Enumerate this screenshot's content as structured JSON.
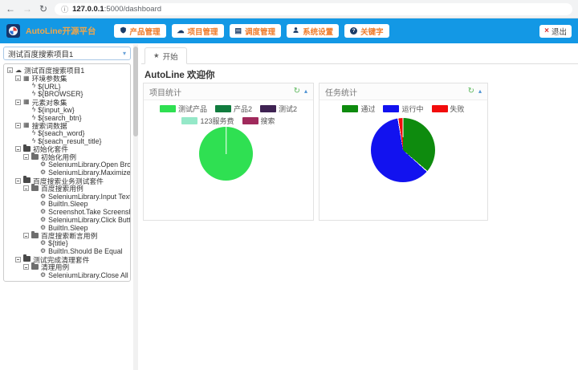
{
  "browser": {
    "url_host": "127.0.0.1",
    "url_rest": ":5000/dashboard"
  },
  "navbar": {
    "brand": "AutoLine开源平台",
    "items": [
      {
        "icon": "shield",
        "label": "产品管理"
      },
      {
        "icon": "cloud",
        "label": "项目管理"
      },
      {
        "icon": "list",
        "label": "调度管理"
      },
      {
        "icon": "user",
        "label": "系统设置"
      },
      {
        "icon": "question",
        "label": "关键字"
      }
    ],
    "logout": "退出"
  },
  "sidebar": {
    "project_select": "测试百度搜索项目1",
    "tree": [
      {
        "level": 0,
        "icon": "project",
        "toggle": true,
        "label": "测试百度搜索项目1"
      },
      {
        "level": 1,
        "icon": "set",
        "toggle": true,
        "label": "环境参数集"
      },
      {
        "level": 2,
        "icon": "var",
        "toggle": false,
        "label": "${URL}"
      },
      {
        "level": 2,
        "icon": "var",
        "toggle": false,
        "label": "${BROWSER}"
      },
      {
        "level": 1,
        "icon": "set",
        "toggle": true,
        "label": "元素对象集"
      },
      {
        "level": 2,
        "icon": "var",
        "toggle": false,
        "label": "${input_kw}"
      },
      {
        "level": 2,
        "icon": "var",
        "toggle": false,
        "label": "${search_btn}"
      },
      {
        "level": 1,
        "icon": "set",
        "toggle": true,
        "label": "搜索词数据"
      },
      {
        "level": 2,
        "icon": "var",
        "toggle": false,
        "label": "${seach_word}"
      },
      {
        "level": 2,
        "icon": "var",
        "toggle": false,
        "label": "${seach_result_title}"
      },
      {
        "level": 1,
        "icon": "suite",
        "toggle": true,
        "label": "初始化套件"
      },
      {
        "level": 2,
        "icon": "case",
        "toggle": true,
        "label": "初始化用例"
      },
      {
        "level": 3,
        "icon": "step",
        "toggle": false,
        "label": "SeleniumLibrary.Open Browser"
      },
      {
        "level": 3,
        "icon": "step",
        "toggle": false,
        "label": "SeleniumLibrary.Maximize Browser Wi"
      },
      {
        "level": 1,
        "icon": "suite",
        "toggle": true,
        "label": "百度搜索业务测试套件"
      },
      {
        "level": 2,
        "icon": "case",
        "toggle": true,
        "label": "百度搜索用例"
      },
      {
        "level": 3,
        "icon": "step",
        "toggle": false,
        "label": "SeleniumLibrary.Input Text"
      },
      {
        "level": 3,
        "icon": "step",
        "toggle": false,
        "label": "BuiltIn.Sleep"
      },
      {
        "level": 3,
        "icon": "step",
        "toggle": false,
        "label": "Screenshot.Take Screenshot"
      },
      {
        "level": 3,
        "icon": "step",
        "toggle": false,
        "label": "SeleniumLibrary.Click Button"
      },
      {
        "level": 3,
        "icon": "step",
        "toggle": false,
        "label": "BuiltIn.Sleep"
      },
      {
        "level": 2,
        "icon": "case",
        "toggle": true,
        "label": "百度搜索断言用例"
      },
      {
        "level": 3,
        "icon": "step",
        "toggle": false,
        "label": "${title}"
      },
      {
        "level": 3,
        "icon": "step",
        "toggle": false,
        "label": "BuiltIn.Should Be Equal"
      },
      {
        "level": 1,
        "icon": "suite",
        "toggle": true,
        "label": "测试完成清理套件"
      },
      {
        "level": 2,
        "icon": "case",
        "toggle": true,
        "label": "清理用例"
      },
      {
        "level": 3,
        "icon": "step",
        "toggle": false,
        "label": "SeleniumLibrary.Close All Browsers"
      }
    ]
  },
  "main": {
    "tab": "开始",
    "welcome": "AutoLine 欢迎你"
  },
  "chart_data": [
    {
      "type": "pie",
      "title": "项目统计",
      "labels": [
        "测试产品",
        "产品2",
        "测试2",
        "123服务费",
        "搜索"
      ],
      "values": [
        100,
        0,
        0,
        0,
        0
      ],
      "colors": [
        "#2fe052",
        "#117c3e",
        "#3f2353",
        "#95e8c8",
        "#a02a5c"
      ],
      "legend_position": "top",
      "legend_rows": [
        [
          0,
          1,
          2
        ],
        [
          3,
          4
        ]
      ]
    },
    {
      "type": "pie",
      "title": "任务统计",
      "labels": [
        "通过",
        "运行中",
        "失败"
      ],
      "values": [
        36.5,
        61,
        2.5
      ],
      "colors": [
        "#0e8b0e",
        "#1212ef",
        "#f20c0c"
      ],
      "legend_position": "top",
      "legend_rows": [
        [
          0,
          1,
          2
        ]
      ]
    }
  ]
}
